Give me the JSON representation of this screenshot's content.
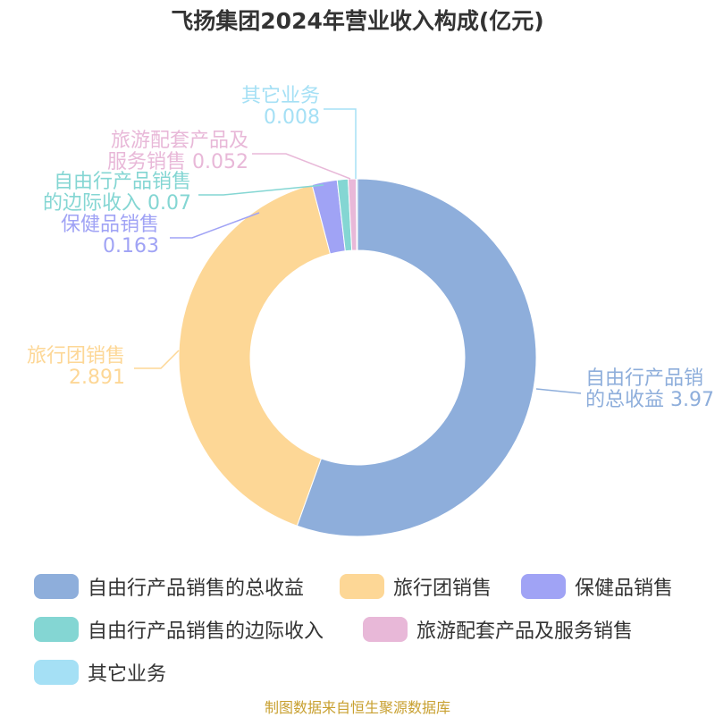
{
  "chart_data": {
    "type": "pie",
    "title": "飞扬集团2024年营业收入构成(亿元)",
    "donut": true,
    "legend_position": "bottom",
    "source": "制图数据来自恒生聚源数据库",
    "slices": [
      {
        "name": "自由行产品销售的总收益",
        "value": 3.97,
        "value_text": "3.97",
        "color": "#8eaedb",
        "label_lines": [
          "自由行产品销",
          "的总收益 3.97"
        ]
      },
      {
        "name": "旅行团销售",
        "value": 2.891,
        "value_text": "2.891",
        "color": "#fdd796",
        "label_lines": [
          "旅行团销售",
          "2.891"
        ]
      },
      {
        "name": "保健品销售",
        "value": 0.163,
        "value_text": "0.163",
        "color": "#a0a3f5",
        "label_lines": [
          "保健品销售",
          "0.163"
        ]
      },
      {
        "name": "自由行产品销售的边际收入",
        "value": 0.07,
        "value_text": "0.07",
        "color": "#84d6d3",
        "label_lines": [
          "自由行产品销售",
          "的边际收入 0.07"
        ]
      },
      {
        "name": "旅游配套产品及服务销售",
        "value": 0.052,
        "value_text": "0.052",
        "color": "#e8b8d8",
        "label_lines": [
          "旅游配套产品及",
          "服务销售 0.052"
        ]
      },
      {
        "name": "其它业务",
        "value": 0.008,
        "value_text": "0.008",
        "color": "#a5e0f5",
        "label_lines": [
          "其它业务",
          "0.008"
        ]
      }
    ]
  }
}
